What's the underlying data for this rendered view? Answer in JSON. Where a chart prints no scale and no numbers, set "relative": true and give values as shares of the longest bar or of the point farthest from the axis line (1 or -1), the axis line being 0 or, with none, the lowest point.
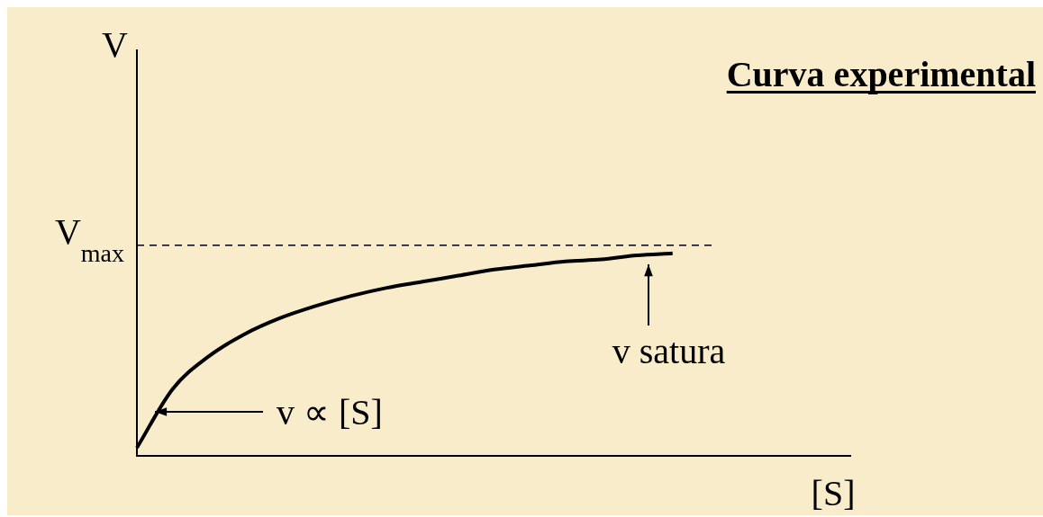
{
  "chart_data": {
    "type": "line",
    "title": "Curva experimental",
    "xlabel": "[S]",
    "relative": true,
    "categories": [
      null,
      null,
      null,
      null,
      null,
      null,
      null,
      null,
      null,
      null,
      null,
      null,
      null,
      null,
      null,
      null,
      null,
      null,
      null,
      null,
      null
    ],
    "series": [
      {
        "color": "#000000",
        "values": [
          0.04,
          0.33,
          0.49,
          0.6,
          0.68,
          0.74,
          0.79,
          0.83,
          0.86,
          0.89,
          0.92,
          0.94,
          0.96,
          0.97,
          0.99,
          1,
          null,
          null,
          null,
          null,
          null
        ]
      }
    ],
    "ref_lines": [
      {
        "axis": "y",
        "value": 1.04,
        "label": "V$_{max}$",
        "line_style": "dashed",
        "color": "#000000"
      }
    ],
    "annotations": [
      "V",
      "v ∝ [S]",
      "v satura"
    ],
    "legend": false,
    "marker": "none",
    "line_style": "solid"
  }
}
